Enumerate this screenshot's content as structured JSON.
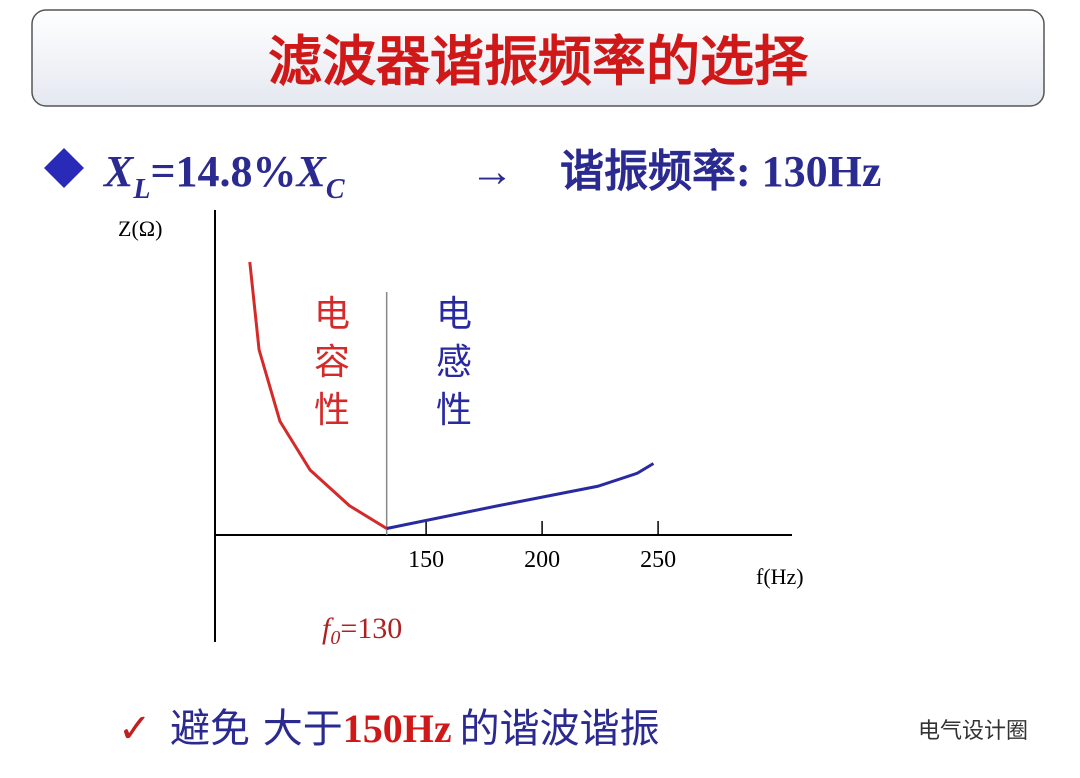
{
  "header": {
    "title": "滤波器谐振频率的选择"
  },
  "bullet": {
    "x1": "X",
    "sub1": "L",
    "mid": "=14.8%",
    "x2": "X",
    "sub2": "C",
    "arrow": "→",
    "result": "谐振频率: 130Hz"
  },
  "chart_data": {
    "type": "line",
    "y_label": "Z(Ω)",
    "x_label": "f(Hz)",
    "xlim": [
      59,
      306
    ],
    "ylim": [
      0,
      100
    ],
    "xticks": [
      150,
      200,
      250
    ],
    "series": [
      {
        "name": "电容性",
        "color": "#d42a2a",
        "x": [
          74,
          78,
          87,
          100,
          117,
          133
        ],
        "values": [
          84,
          57,
          35,
          20,
          9,
          2
        ]
      },
      {
        "name": "电感性",
        "color": "#2a2aa0",
        "x": [
          133,
          181,
          224,
          241,
          248
        ],
        "values": [
          2,
          9,
          15,
          19,
          22
        ]
      }
    ],
    "annotation": {
      "f": "f",
      "sub": "0",
      "rest": "=130"
    }
  },
  "footer": {
    "check": "✓",
    "text1": "避免 大于",
    "highlight": "150Hz",
    "text2": "的谐波谐振",
    "watermark": "电气设计圈"
  }
}
